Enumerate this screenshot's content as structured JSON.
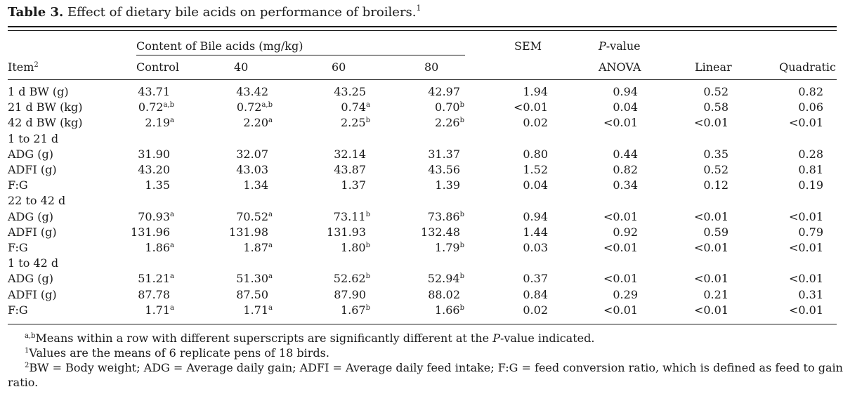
{
  "caption": {
    "label": "Table 3.",
    "text": "Effect of dietary bile acids on performance of broilers.",
    "marker": "1"
  },
  "header": {
    "group_content": "Content of Bile acids (mg/kg)",
    "sem": "SEM",
    "pvalue_italic": "P",
    "pvalue_rest": "-value",
    "item": "Item",
    "item_marker": "2",
    "col_control": "Control",
    "col_40": "40",
    "col_60": "60",
    "col_80": "80",
    "col_anova": "ANOVA",
    "col_linear": "Linear",
    "col_quadratic": "Quadratic"
  },
  "rows": [
    {
      "kind": "data",
      "item": "1 d BW (g)",
      "c0": "43.71",
      "s0": "",
      "c40": "43.42",
      "s40": "",
      "c60": "43.25",
      "s60": "",
      "c80": "42.97",
      "s80": "",
      "sem": "1.94",
      "anova": "0.94",
      "linear": "0.52",
      "quadratic": "0.82"
    },
    {
      "kind": "data",
      "item": "21 d BW (kg)",
      "c0": "0.72",
      "s0": "a,b",
      "c40": "0.72",
      "s40": "a,b",
      "c60": "0.74",
      "s60": "a",
      "c80": "0.70",
      "s80": "b",
      "sem": "<0.01",
      "anova": "0.04",
      "linear": "0.58",
      "quadratic": "0.06"
    },
    {
      "kind": "data",
      "item": "42 d BW (kg)",
      "c0": "2.19",
      "s0": "a",
      "c40": "2.20",
      "s40": "a",
      "c60": "2.25",
      "s60": "b",
      "c80": "2.26",
      "s80": "b",
      "sem": "0.02",
      "anova": "<0.01",
      "linear": "<0.01",
      "quadratic": "<0.01"
    },
    {
      "kind": "section",
      "item": "1 to 21 d"
    },
    {
      "kind": "data",
      "item": "ADG (g)",
      "c0": "31.90",
      "s0": "",
      "c40": "32.07",
      "s40": "",
      "c60": "32.14",
      "s60": "",
      "c80": "31.37",
      "s80": "",
      "sem": "0.80",
      "anova": "0.44",
      "linear": "0.35",
      "quadratic": "0.28"
    },
    {
      "kind": "data",
      "item": "ADFI (g)",
      "c0": "43.20",
      "s0": "",
      "c40": "43.03",
      "s40": "",
      "c60": "43.87",
      "s60": "",
      "c80": "43.56",
      "s80": "",
      "sem": "1.52",
      "anova": "0.82",
      "linear": "0.52",
      "quadratic": "0.81"
    },
    {
      "kind": "data",
      "item": "F:G",
      "c0": "1.35",
      "s0": "",
      "c40": "1.34",
      "s40": "",
      "c60": "1.37",
      "s60": "",
      "c80": "1.39",
      "s80": "",
      "sem": "0.04",
      "anova": "0.34",
      "linear": "0.12",
      "quadratic": "0.19"
    },
    {
      "kind": "section",
      "item": "22 to 42 d"
    },
    {
      "kind": "data",
      "item": "ADG (g)",
      "c0": "70.93",
      "s0": "a",
      "c40": "70.52",
      "s40": "a",
      "c60": "73.11",
      "s60": "b",
      "c80": "73.86",
      "s80": "b",
      "sem": "0.94",
      "anova": "<0.01",
      "linear": "<0.01",
      "quadratic": "<0.01"
    },
    {
      "kind": "data",
      "item": "ADFI (g)",
      "c0": "131.96",
      "s0": "",
      "c40": "131.98",
      "s40": "",
      "c60": "131.93",
      "s60": "",
      "c80": "132.48",
      "s80": "",
      "sem": "1.44",
      "anova": "0.92",
      "linear": "0.59",
      "quadratic": "0.79"
    },
    {
      "kind": "data",
      "item": "F:G",
      "c0": "1.86",
      "s0": "a",
      "c40": "1.87",
      "s40": "a",
      "c60": "1.80",
      "s60": "b",
      "c80": "1.79",
      "s80": "b",
      "sem": "0.03",
      "anova": "<0.01",
      "linear": "<0.01",
      "quadratic": "<0.01"
    },
    {
      "kind": "section",
      "item": "1 to 42 d"
    },
    {
      "kind": "data",
      "item": "ADG (g)",
      "c0": "51.21",
      "s0": "a",
      "c40": "51.30",
      "s40": "a",
      "c60": "52.62",
      "s60": "b",
      "c80": "52.94",
      "s80": "b",
      "sem": "0.37",
      "anova": "<0.01",
      "linear": "<0.01",
      "quadratic": "<0.01"
    },
    {
      "kind": "data",
      "item": "ADFI (g)",
      "c0": "87.78",
      "s0": "",
      "c40": "87.50",
      "s40": "",
      "c60": "87.90",
      "s60": "",
      "c80": "88.02",
      "s80": "",
      "sem": "0.84",
      "anova": "0.29",
      "linear": "0.21",
      "quadratic": "0.31"
    },
    {
      "kind": "data",
      "item": "F:G",
      "c0": "1.71",
      "s0": "a",
      "c40": "1.71",
      "s40": "a",
      "c60": "1.67",
      "s60": "b",
      "c80": "1.66",
      "s80": "b",
      "sem": "0.02",
      "anova": "<0.01",
      "linear": "<0.01",
      "quadratic": "<0.01"
    }
  ],
  "footnotes": {
    "f1_marker": "a,b",
    "f1_text_a": "Means within a row with different superscripts are significantly different at the ",
    "f1_italic": "P",
    "f1_text_b": "-value indicated.",
    "f2_marker": "1",
    "f2_text": "Values are the means of 6 replicate pens of 18 birds.",
    "f3_marker": "2",
    "f3_line1": "BW = Body weight; ADG = Average daily gain; ADFI = Average daily feed intake; F:G = feed conversion ratio, which is defined as feed to gain",
    "f3_line2": "ratio."
  }
}
